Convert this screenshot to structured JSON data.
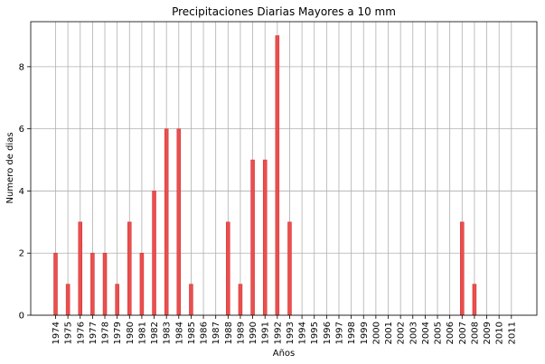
{
  "chart_data": {
    "type": "bar",
    "title": "Precipitaciones Diarias Mayores a 10 mm",
    "xlabel": "Años",
    "ylabel": "Numero de dias",
    "categories": [
      "1974",
      "1975",
      "1976",
      "1977",
      "1978",
      "1979",
      "1980",
      "1981",
      "1982",
      "1983",
      "1984",
      "1985",
      "1986",
      "1987",
      "1988",
      "1989",
      "1990",
      "1991",
      "1992",
      "1993",
      "1994",
      "1995",
      "1996",
      "1997",
      "1998",
      "1999",
      "2000",
      "2001",
      "2002",
      "2003",
      "2004",
      "2005",
      "2006",
      "2007",
      "2008",
      "2009",
      "2010",
      "2011"
    ],
    "values": [
      2,
      1,
      3,
      2,
      2,
      1,
      3,
      2,
      4,
      6,
      6,
      1,
      0,
      0,
      3,
      1,
      5,
      5,
      9,
      3,
      0,
      0,
      0,
      0,
      0,
      0,
      0,
      0,
      0,
      0,
      0,
      0,
      0,
      3,
      1,
      0,
      0,
      0
    ],
    "yticks": [
      "0",
      "2",
      "4",
      "6",
      "8"
    ],
    "ylim": [
      0,
      9.45
    ],
    "grid": true,
    "bar_color": "#e8504f",
    "bar_edge_color": "#d62728"
  }
}
